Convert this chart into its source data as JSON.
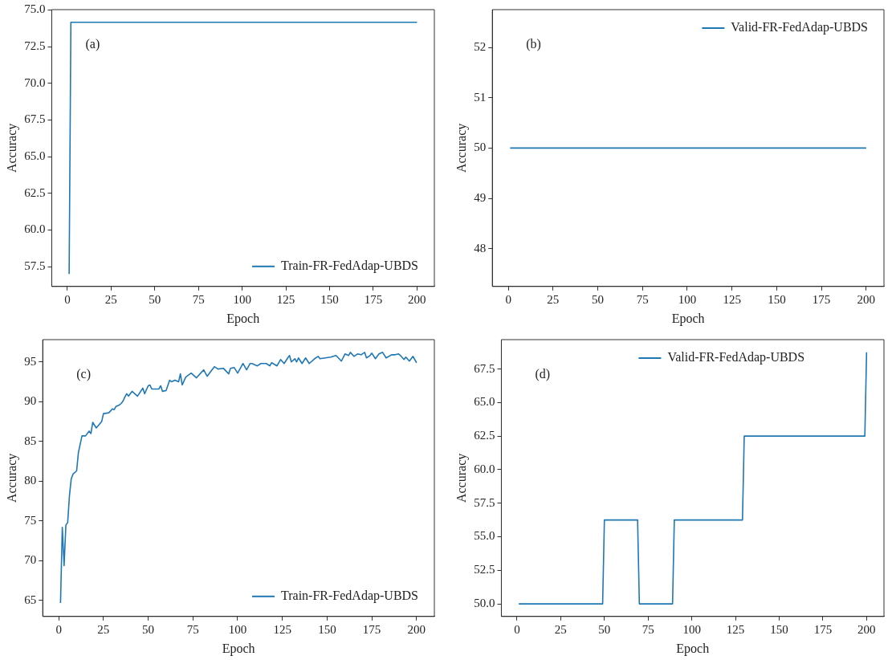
{
  "chart_data": [
    {
      "type": "line",
      "xlabel": "Epoch",
      "ylabel": "Accuracy",
      "annotations": [
        "(a)"
      ],
      "legend": "bottom right",
      "marker": "none",
      "xlim": [
        -8.95,
        209.95
      ],
      "xticks": [
        0,
        25,
        50,
        75,
        100,
        125,
        150,
        175,
        200
      ],
      "ylim": [
        56.15,
        75.03
      ],
      "yticks": [
        57.5,
        {
          "value": 60,
          "label": "60.0"
        },
        62.5,
        {
          "value": 65,
          "label": "65.0"
        },
        67.5,
        {
          "value": 70,
          "label": "70.0"
        },
        72.5,
        {
          "value": 75,
          "label": "75.0"
        }
      ],
      "series": [
        {
          "name": "Train-FR-FedAdap-UBDS",
          "color": "#1f77b4",
          "x": [
            1,
            2,
            200
          ],
          "values": [
            57.0,
            74.17,
            74.17
          ]
        }
      ]
    },
    {
      "type": "line",
      "xlabel": "Epoch",
      "ylabel": "Accuracy",
      "annotations": [
        "(b)"
      ],
      "legend": "top right",
      "marker": "none",
      "xlim": [
        -8.95,
        209.95
      ],
      "xticks": [
        0,
        25,
        50,
        75,
        100,
        125,
        150,
        175,
        200
      ],
      "ylim": [
        47.25,
        52.75
      ],
      "yticks": [
        48,
        49,
        50,
        51,
        52
      ],
      "series": [
        {
          "name": "Valid-FR-FedAdap-UBDS",
          "color": "#1f77b4",
          "x": [
            1,
            200
          ],
          "values": [
            50,
            50
          ]
        }
      ]
    },
    {
      "type": "line",
      "xlabel": "Epoch",
      "ylabel": "Accuracy",
      "annotations": [
        "(c)"
      ],
      "legend": "bottom right",
      "marker": "none",
      "xlim": [
        -8.95,
        209.95
      ],
      "xticks": [
        0,
        25,
        50,
        75,
        100,
        125,
        150,
        175,
        200
      ],
      "ylim": [
        63.0,
        97.8
      ],
      "yticks": [
        65,
        70,
        75,
        80,
        85,
        90,
        95
      ],
      "series": [
        {
          "name": "Train-FR-FedAdap-UBDS",
          "color": "#1f77b4",
          "x": [
            1,
            2,
            3,
            4,
            5,
            6,
            7,
            8,
            10,
            11,
            13,
            15,
            17,
            18,
            19,
            21,
            24,
            25,
            28,
            30,
            31,
            32,
            34,
            35,
            36,
            37,
            38,
            39,
            41,
            44,
            47,
            48,
            50,
            51,
            52,
            56,
            57,
            58,
            60,
            62,
            63,
            65,
            67,
            68,
            69,
            71,
            74,
            77,
            81,
            83,
            87,
            89,
            92,
            95,
            96,
            98,
            100,
            103,
            105,
            107,
            108,
            111,
            113,
            116,
            118,
            119,
            122,
            124,
            126,
            128,
            129,
            130,
            132,
            133,
            134,
            136,
            138,
            140,
            143,
            145,
            146,
            149,
            152,
            155,
            158,
            160,
            162,
            163,
            165,
            167,
            169,
            171,
            172,
            174,
            175,
            177,
            179,
            181,
            183,
            186,
            188,
            190,
            191,
            193,
            194,
            196,
            198,
            200
          ],
          "values": [
            64.7,
            74.2,
            69.4,
            74.5,
            74.8,
            78.2,
            80.3,
            80.9,
            81.3,
            83.6,
            85.7,
            85.7,
            86.3,
            86.0,
            87.4,
            86.7,
            87.5,
            88.5,
            88.6,
            89.1,
            89.0,
            89.4,
            89.6,
            89.8,
            90.1,
            90.6,
            91.0,
            90.7,
            91.3,
            90.7,
            91.7,
            91.0,
            92.0,
            92.1,
            91.6,
            91.6,
            92.0,
            91.3,
            91.4,
            92.7,
            92.5,
            92.7,
            92.5,
            93.5,
            92.1,
            93.1,
            93.6,
            93.0,
            94.0,
            93.2,
            94.4,
            94.1,
            94.2,
            93.5,
            94.2,
            94.3,
            93.6,
            94.8,
            94.0,
            94.8,
            94.8,
            94.5,
            94.8,
            94.8,
            94.5,
            94.9,
            94.5,
            95.3,
            94.8,
            95.5,
            95.8,
            95.0,
            95.4,
            95.0,
            95.5,
            94.8,
            95.5,
            94.8,
            95.4,
            95.7,
            95.4,
            95.5,
            95.6,
            95.8,
            95.1,
            96.0,
            95.8,
            96.2,
            95.7,
            96.0,
            95.9,
            96.2,
            95.5,
            95.8,
            96.1,
            95.4,
            96.0,
            96.2,
            95.5,
            95.9,
            95.9,
            96.0,
            95.8,
            95.3,
            95.6,
            95.1,
            95.7,
            94.9
          ]
        }
      ]
    },
    {
      "type": "line",
      "xlabel": "Epoch",
      "ylabel": "Accuracy",
      "annotations": [
        "(d)"
      ],
      "legend": "top",
      "marker": "none",
      "xlim": [
        -8.95,
        209.95
      ],
      "xticks": [
        0,
        25,
        50,
        75,
        100,
        125,
        150,
        175,
        200
      ],
      "ylim": [
        49.06,
        69.69
      ],
      "yticks": [
        {
          "value": 50,
          "label": "50.0"
        },
        52.5,
        {
          "value": 55,
          "label": "55.0"
        },
        57.5,
        {
          "value": 60,
          "label": "60.0"
        },
        62.5,
        {
          "value": 65,
          "label": "65.0"
        },
        67.5
      ],
      "series": [
        {
          "name": "Valid-FR-FedAdap-UBDS",
          "color": "#1f77b4",
          "x": [
            1,
            49,
            50,
            69,
            70,
            89,
            90,
            129,
            130,
            199,
            200
          ],
          "values": [
            50,
            50,
            56.25,
            56.25,
            50,
            50,
            56.25,
            56.25,
            62.5,
            62.5,
            68.75
          ]
        }
      ]
    }
  ]
}
